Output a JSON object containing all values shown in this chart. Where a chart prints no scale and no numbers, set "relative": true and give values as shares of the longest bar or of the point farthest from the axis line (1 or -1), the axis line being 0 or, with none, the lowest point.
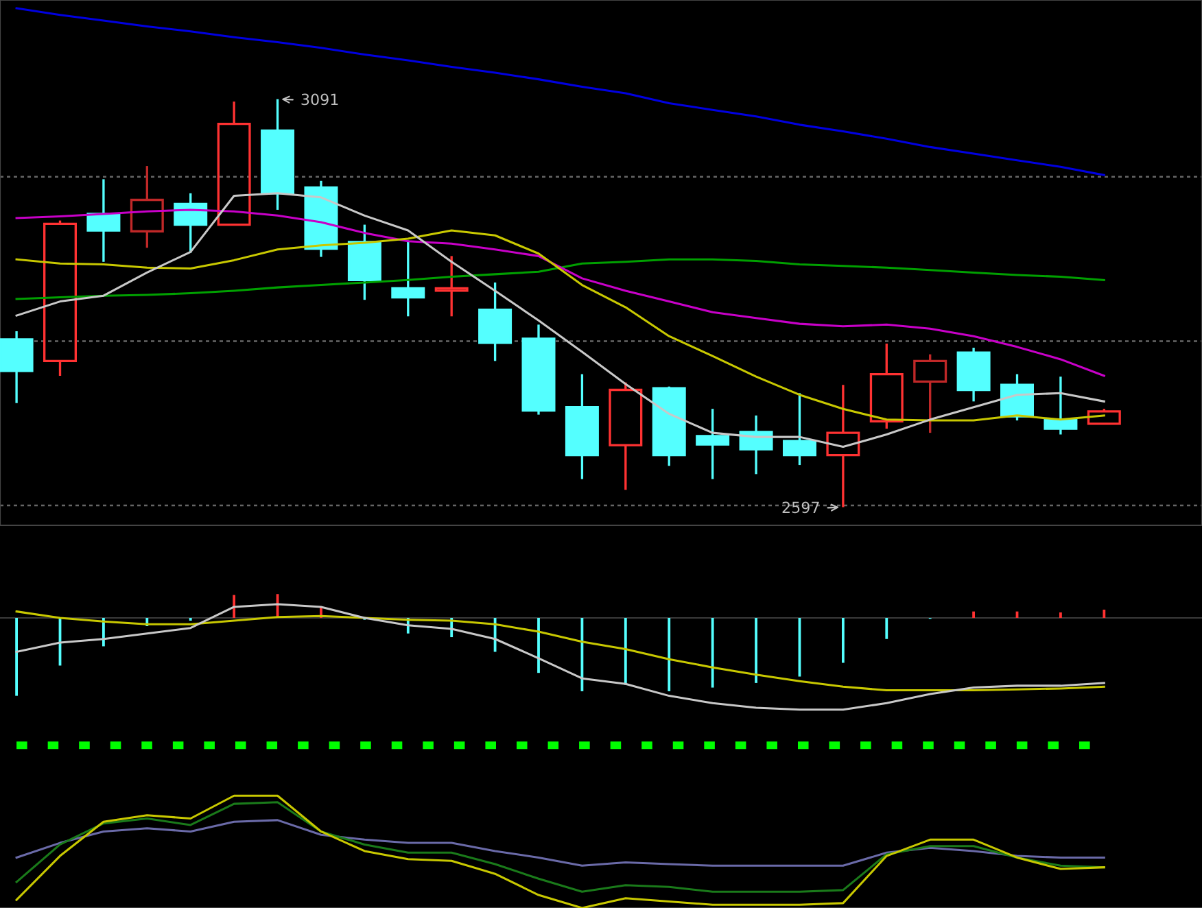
{
  "chart_data": [
    {
      "type": "candlestick",
      "categories": [
        null,
        null,
        null,
        null,
        null,
        null,
        null,
        null,
        null,
        null,
        null,
        null,
        null,
        null,
        null,
        null,
        null,
        null,
        null,
        null,
        null,
        null,
        null,
        null,
        null,
        null
      ],
      "ohlc": [
        [
          2800,
          2810,
          2723,
          2762
        ],
        [
          2774,
          2944,
          2756,
          2940
        ],
        [
          2952,
          2994,
          2894,
          2932
        ],
        [
          2931,
          3010,
          2911,
          2969
        ],
        [
          2964,
          2977,
          2905,
          2939
        ],
        [
          2939,
          3088,
          2939,
          3061
        ],
        [
          3053,
          3091,
          2957,
          2977
        ],
        [
          2984,
          2992,
          2900,
          2910
        ],
        [
          2918,
          2939,
          2848,
          2872
        ],
        [
          2862,
          2920,
          2828,
          2851
        ],
        [
          2859,
          2901,
          2828,
          2862
        ],
        [
          2836,
          2869,
          2774,
          2796
        ],
        [
          2801,
          2818,
          2709,
          2714
        ],
        [
          2718,
          2758,
          2631,
          2660
        ],
        [
          2672,
          2748,
          2618,
          2739
        ],
        [
          2741,
          2743,
          2647,
          2660
        ],
        [
          2683,
          2716,
          2631,
          2673
        ],
        [
          2688,
          2708,
          2637,
          2667
        ],
        [
          2677,
          2735,
          2648,
          2660
        ],
        [
          2660,
          2745,
          2597,
          2687
        ],
        [
          2701,
          2795,
          2692,
          2758
        ],
        [
          2749,
          2782,
          2687,
          2774
        ],
        [
          2784,
          2790,
          2725,
          2739
        ],
        [
          2745,
          2758,
          2702,
          2707
        ],
        [
          2703,
          2755,
          2685,
          2692
        ],
        [
          2698,
          2716,
          2698,
          2713
        ]
      ],
      "colors": [
        "#54ffff",
        "#ff3232",
        "#54ffff",
        "#c02828",
        "#54ffff",
        "#ff3232",
        "#54ffff",
        "#54ffff",
        "#54ffff",
        "#54ffff",
        "#ff3232",
        "#54ffff",
        "#54ffff",
        "#54ffff",
        "#ff3232",
        "#54ffff",
        "#54ffff",
        "#54ffff",
        "#54ffff",
        "#ff3232",
        "#ff3232",
        "#c02828",
        "#54ffff",
        "#54ffff",
        "#54ffff",
        "#ff3232"
      ],
      "series": [
        {
          "type": "line",
          "color": "#0000e0",
          "values": [
            3201,
            3193,
            3186,
            3179,
            3173,
            3166,
            3160,
            3153,
            3145,
            3138,
            3130,
            3123,
            3115,
            3106,
            3098,
            3086,
            3078,
            3070,
            3060,
            3052,
            3043,
            3033,
            3025,
            3017,
            3009,
            2999
          ]
        },
        {
          "type": "line",
          "color": "#00a000",
          "values": [
            2849,
            2851,
            2853,
            2854,
            2856,
            2859,
            2863,
            2866,
            2869,
            2872,
            2876,
            2879,
            2882,
            2892,
            2894,
            2897,
            2897,
            2895,
            2891,
            2889,
            2887,
            2884,
            2881,
            2878,
            2876,
            2872
          ]
        },
        {
          "type": "line",
          "color": "#c800c8",
          "values": [
            2947,
            2949,
            2952,
            2955,
            2957,
            2955,
            2950,
            2942,
            2929,
            2919,
            2916,
            2909,
            2901,
            2874,
            2859,
            2846,
            2833,
            2826,
            2819,
            2816,
            2818,
            2813,
            2804,
            2791,
            2776,
            2756
          ]
        },
        {
          "type": "line",
          "color": "#c8c800",
          "values": [
            2897,
            2892,
            2891,
            2887,
            2886,
            2896,
            2909,
            2914,
            2917,
            2922,
            2932,
            2926,
            2904,
            2866,
            2839,
            2804,
            2780,
            2755,
            2733,
            2716,
            2703,
            2702,
            2702,
            2708,
            2703,
            2708
          ]
        },
        {
          "type": "line",
          "color": "#c8c8c8",
          "values": [
            2829,
            2846,
            2853,
            2881,
            2906,
            2974,
            2977,
            2972,
            2950,
            2932,
            2894,
            2859,
            2823,
            2785,
            2746,
            2710,
            2687,
            2682,
            2682,
            2670,
            2685,
            2703,
            2718,
            2733,
            2735,
            2725
          ]
        }
      ],
      "annotations": [
        "3091",
        "2597"
      ],
      "ylim": [
        2575,
        3211
      ],
      "yticks": [
        {
          "value": 2599,
          "label": null
        },
        {
          "value": 2798,
          "label": null
        },
        {
          "value": 2997,
          "label": null
        }
      ],
      "grid": "y"
    },
    {
      "type": "line",
      "relative": true,
      "categories": [
        null,
        null,
        null,
        null,
        null,
        null,
        null,
        null,
        null,
        null,
        null,
        null,
        null,
        null,
        null,
        null,
        null,
        null,
        null,
        null,
        null,
        null,
        null,
        null,
        null,
        null
      ],
      "series": [
        {
          "type": "bar",
          "colors": [
            "#54ffff",
            "#54ffff",
            "#54ffff",
            "#54ffff",
            "#54ffff",
            "#ff3232",
            "#ff3232",
            "#ff3232",
            "#54ffff",
            "#54ffff",
            "#54ffff",
            "#54ffff",
            "#54ffff",
            "#54ffff",
            "#54ffff",
            "#54ffff",
            "#54ffff",
            "#54ffff",
            "#54ffff",
            "#54ffff",
            "#54ffff",
            "#54ffff",
            "#ff3232",
            "#ff3232",
            "#ff3232",
            "#ff3232"
          ],
          "values": [
            -0.85,
            -0.52,
            -0.31,
            -0.09,
            -0.03,
            0.25,
            0.26,
            0.12,
            -0.02,
            -0.17,
            -0.21,
            -0.37,
            -0.6,
            -0.8,
            -0.73,
            -0.8,
            -0.76,
            -0.71,
            -0.64,
            -0.49,
            -0.23,
            -0.01,
            0.07,
            0.07,
            0.06,
            0.09
          ]
        },
        {
          "type": "line",
          "color": "#c8c800",
          "values": [
            0.07,
            0,
            -0.04,
            -0.07,
            -0.07,
            -0.03,
            0.01,
            0.02,
            0,
            -0.02,
            -0.03,
            -0.07,
            -0.15,
            -0.26,
            -0.34,
            -0.45,
            -0.54,
            -0.62,
            -0.69,
            -0.75,
            -0.79,
            -0.79,
            -0.79,
            -0.78,
            -0.77,
            -0.75
          ]
        },
        {
          "type": "line",
          "color": "#c8c8c8",
          "values": [
            -0.37,
            -0.27,
            -0.23,
            -0.17,
            -0.11,
            0.12,
            0.15,
            0.12,
            0,
            -0.08,
            -0.12,
            -0.23,
            -0.44,
            -0.66,
            -0.72,
            -0.85,
            -0.93,
            -0.98,
            -1,
            -1,
            -0.93,
            -0.83,
            -0.76,
            -0.74,
            -0.74,
            -0.71
          ]
        }
      ]
    },
    {
      "type": "line",
      "relative": true,
      "categories": [
        null,
        null,
        null,
        null,
        null,
        null,
        null,
        null,
        null,
        null,
        null,
        null,
        null,
        null,
        null,
        null,
        null,
        null,
        null,
        null,
        null,
        null,
        null,
        null,
        null,
        null
      ],
      "series": [
        {
          "color": "#00ff00",
          "line_style": "dashed",
          "values": [
            1,
            1,
            1,
            1,
            1,
            1,
            1,
            1,
            1,
            1,
            1,
            1,
            1,
            1,
            1,
            1,
            1,
            1,
            1,
            1,
            1,
            1,
            1,
            1,
            1,
            1
          ]
        },
        {
          "color": "#6a6aa8",
          "values": [
            0.31,
            0.4,
            0.47,
            0.49,
            0.47,
            0.53,
            0.54,
            0.45,
            0.42,
            0.4,
            0.4,
            0.35,
            0.31,
            0.26,
            0.28,
            0.27,
            0.26,
            0.26,
            0.26,
            0.26,
            0.34,
            0.37,
            0.35,
            0.32,
            0.31,
            0.31
          ]
        },
        {
          "color": "#1a7a1a",
          "values": [
            0.16,
            0.39,
            0.52,
            0.55,
            0.51,
            0.64,
            0.65,
            0.47,
            0.39,
            0.34,
            0.34,
            0.27,
            0.18,
            0.1,
            0.14,
            0.13,
            0.1,
            0.1,
            0.1,
            0.11,
            0.33,
            0.38,
            0.38,
            0.31,
            0.26,
            0.25
          ]
        },
        {
          "color": "#c8c800",
          "values": [
            0.05,
            0.32,
            0.53,
            0.57,
            0.55,
            0.69,
            0.69,
            0.47,
            0.35,
            0.3,
            0.29,
            0.21,
            0.08,
            0,
            0.06,
            0.04,
            0.02,
            0.02,
            0.02,
            0.03,
            0.32,
            0.42,
            0.42,
            0.31,
            0.24,
            0.25
          ]
        }
      ]
    }
  ]
}
